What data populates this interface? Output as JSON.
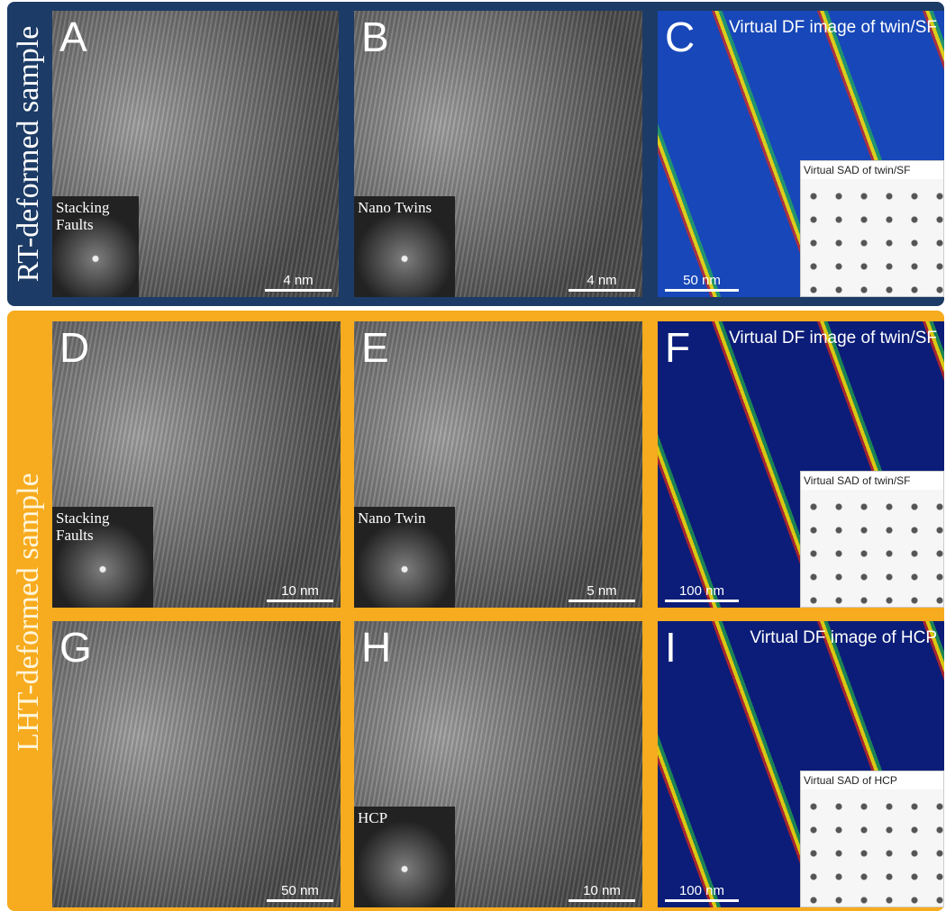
{
  "sections": [
    {
      "label": "RT-deformed sample",
      "panels": [
        {
          "letter": "A",
          "inset": "Stacking Faults",
          "scale": "4 nm"
        },
        {
          "letter": "B",
          "inset": "Nano Twins",
          "scale": "4 nm"
        },
        {
          "letter": "C",
          "title": "Virtual DF image of twin/SF",
          "inset": "Virtual SAD of twin/SF",
          "scale": "50 nm"
        }
      ]
    },
    {
      "label": "LHT-deformed sample",
      "panels": [
        {
          "letter": "D",
          "inset": "Stacking Faults",
          "scale": "10 nm"
        },
        {
          "letter": "E",
          "inset": "Nano Twin",
          "scale": "5 nm"
        },
        {
          "letter": "F",
          "title": "Virtual DF image of twin/SF",
          "inset": "Virtual SAD of twin/SF",
          "scale": "100 nm"
        },
        {
          "letter": "G",
          "scale": "50 nm"
        },
        {
          "letter": "H",
          "inset": "HCP",
          "scale": "10 nm"
        },
        {
          "letter": "I",
          "title": "Virtual DF image of HCP",
          "inset": "Virtual SAD of HCP",
          "scale": "100 nm"
        }
      ]
    }
  ]
}
